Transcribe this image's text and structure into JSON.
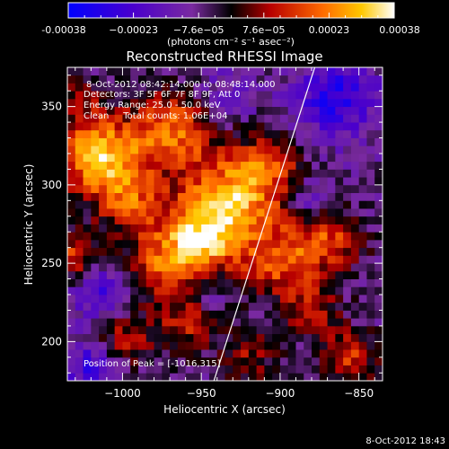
{
  "chart_data": {
    "type": "heatmap",
    "title": "Reconstructed RHESSI Image",
    "xlabel": "Heliocentric X (arcsec)",
    "ylabel": "Heliocentric Y (arcsec)",
    "xlim": [
      -1035,
      -835
    ],
    "ylim": [
      175,
      375
    ],
    "x_ticks": [
      -1000,
      -950,
      -900,
      -850
    ],
    "x_tick_labels": [
      "−1000",
      "−950",
      "−900",
      "−850"
    ],
    "y_ticks": [
      200,
      250,
      300,
      350
    ],
    "y_tick_labels": [
      "200",
      "250",
      "300",
      "350"
    ],
    "colorbar": {
      "range": [
        -0.00038,
        0.00038
      ],
      "tick_labels": [
        "-0.00038",
        "−0.00023",
        "−7.6e−05",
        "7.6e−05",
        "0.00023",
        "0.00038"
      ],
      "units_label": "(photons cm⁻² s⁻¹ asec⁻²)"
    },
    "annotations": {
      "time_range": "8-Oct-2012 08:42:14.000 to 08:48:14.000",
      "detectors": "Detectors: 3F 5F 6F 7F 8F 9F, Att 0",
      "energy": "Energy Range: 25.0 - 50.0 keV",
      "clean": "Clean     Total counts: 1.06E+04",
      "peak": "Position of Peak = [-1016,315]"
    },
    "limb_line": {
      "x": [
        -942,
        -878
      ],
      "y": [
        175,
        375
      ]
    },
    "peak": {
      "x": -1016,
      "y": 315
    },
    "blobs": [
      {
        "x": -1015,
        "y": 318,
        "amp": 1.0,
        "s": 18
      },
      {
        "x": -970,
        "y": 335,
        "amp": 0.75,
        "s": 18
      },
      {
        "x": -930,
        "y": 290,
        "amp": 0.95,
        "s": 22
      },
      {
        "x": -955,
        "y": 262,
        "amp": 0.9,
        "s": 18
      },
      {
        "x": -995,
        "y": 290,
        "amp": 0.55,
        "s": 14
      },
      {
        "x": -985,
        "y": 245,
        "amp": 0.45,
        "s": 15
      },
      {
        "x": -900,
        "y": 250,
        "amp": 0.55,
        "s": 16
      },
      {
        "x": -870,
        "y": 265,
        "amp": 0.6,
        "s": 15
      },
      {
        "x": -905,
        "y": 315,
        "amp": 0.45,
        "s": 13
      },
      {
        "x": -880,
        "y": 220,
        "amp": 0.45,
        "s": 13
      },
      {
        "x": -1000,
        "y": 205,
        "amp": 0.5,
        "s": 14
      },
      {
        "x": -960,
        "y": 210,
        "amp": 0.45,
        "s": 13
      },
      {
        "x": -855,
        "y": 190,
        "amp": 0.55,
        "s": 12
      },
      {
        "x": -920,
        "y": 190,
        "amp": 0.4,
        "s": 12
      },
      {
        "x": -1030,
        "y": 255,
        "amp": 0.55,
        "s": 12
      },
      {
        "x": -1030,
        "y": 355,
        "amp": 0.3,
        "s": 12
      },
      {
        "x": -865,
        "y": 355,
        "amp": -0.6,
        "s": 18
      },
      {
        "x": -1010,
        "y": 230,
        "amp": -0.6,
        "s": 14
      },
      {
        "x": -1020,
        "y": 185,
        "amp": -0.5,
        "s": 12
      },
      {
        "x": -880,
        "y": 290,
        "amp": -0.35,
        "s": 10
      },
      {
        "x": -935,
        "y": 360,
        "amp": -0.25,
        "s": 14
      },
      {
        "x": -945,
        "y": 235,
        "amp": -0.3,
        "s": 9
      }
    ]
  },
  "footer": {
    "timestamp": "8-Oct-2012 18:43"
  }
}
